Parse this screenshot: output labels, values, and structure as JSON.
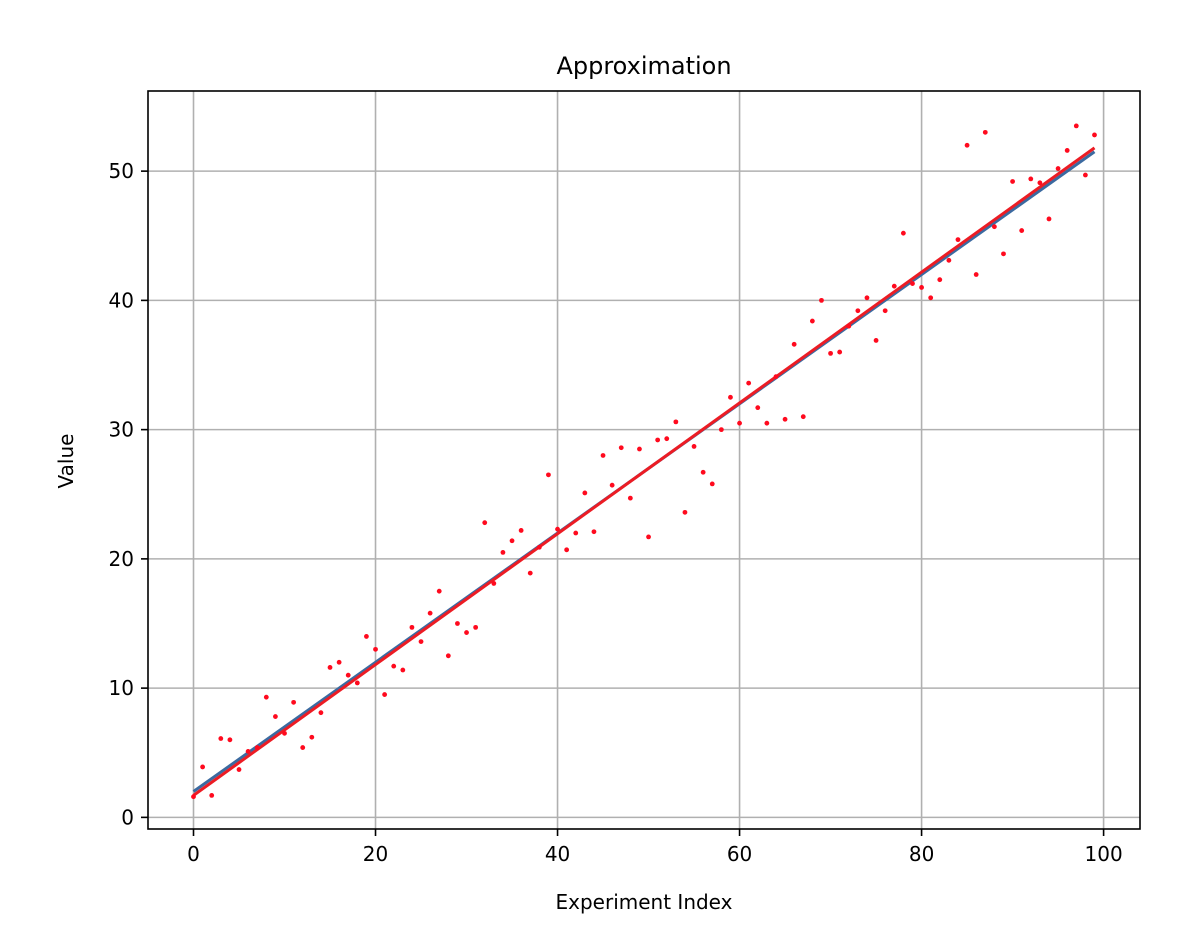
{
  "chart_data": {
    "type": "scatter",
    "title": "Approximation",
    "xlabel": "Experiment Index",
    "ylabel": "Value",
    "xlim": [
      -5,
      104
    ],
    "ylim": [
      -0.9,
      56.2
    ],
    "xticks": [
      0,
      20,
      40,
      60,
      80,
      100
    ],
    "yticks": [
      0,
      10,
      20,
      30,
      40,
      50
    ],
    "grid": true,
    "legend": "none",
    "colors": {
      "points": "#ff0a1e",
      "fit_red": "#ec1c24",
      "fit_blue": "#3b6aa0",
      "grid": "#b0b0b0"
    },
    "lines": [
      {
        "color": "blue",
        "x": [
          0,
          99
        ],
        "y": [
          2.0,
          51.5
        ]
      },
      {
        "color": "red",
        "x": [
          0,
          99
        ],
        "y": [
          1.7,
          51.8
        ]
      }
    ],
    "points": {
      "x": [
        0,
        1,
        2,
        3,
        4,
        5,
        6,
        7,
        8,
        9,
        10,
        11,
        12,
        13,
        14,
        15,
        16,
        17,
        18,
        19,
        20,
        21,
        22,
        23,
        24,
        25,
        26,
        27,
        28,
        29,
        30,
        31,
        32,
        33,
        34,
        35,
        36,
        37,
        38,
        39,
        40,
        41,
        42,
        43,
        44,
        45,
        46,
        47,
        48,
        49,
        50,
        51,
        52,
        53,
        54,
        55,
        56,
        57,
        58,
        59,
        60,
        61,
        62,
        63,
        64,
        65,
        66,
        67,
        68,
        69,
        70,
        71,
        72,
        73,
        74,
        75,
        76,
        77,
        78,
        79,
        80,
        81,
        82,
        83,
        84,
        85,
        86,
        87,
        88,
        89,
        90,
        91,
        92,
        93,
        94,
        95,
        96,
        97,
        98,
        99
      ],
      "y": [
        1.6,
        3.9,
        1.7,
        6.1,
        6.0,
        3.7,
        5.1,
        5.4,
        9.3,
        7.8,
        6.5,
        8.9,
        5.4,
        6.2,
        8.1,
        11.6,
        12.0,
        11.0,
        10.4,
        14.0,
        13.0,
        9.5,
        11.7,
        11.4,
        14.7,
        13.6,
        15.8,
        17.5,
        12.5,
        15.0,
        14.3,
        14.7,
        22.8,
        18.1,
        20.5,
        21.4,
        22.2,
        18.9,
        20.9,
        26.5,
        22.3,
        20.7,
        22.0,
        25.1,
        22.1,
        28.0,
        25.7,
        28.6,
        24.7,
        28.5,
        21.7,
        29.2,
        29.3,
        30.6,
        23.6,
        28.7,
        26.7,
        25.8,
        30.0,
        32.5,
        30.5,
        33.6,
        31.7,
        30.5,
        34.1,
        30.8,
        36.6,
        31.0,
        38.4,
        40.0,
        35.9,
        36.0,
        38.0,
        39.2,
        40.2,
        36.9,
        39.2,
        41.1,
        45.2,
        41.3,
        41.0,
        40.2,
        41.6,
        43.1,
        44.7,
        52.0,
        42.0,
        53.0,
        45.7,
        43.6,
        49.2,
        45.4,
        49.4,
        49.1,
        46.3,
        50.2,
        51.6,
        53.5,
        49.7,
        52.8
      ]
    }
  }
}
